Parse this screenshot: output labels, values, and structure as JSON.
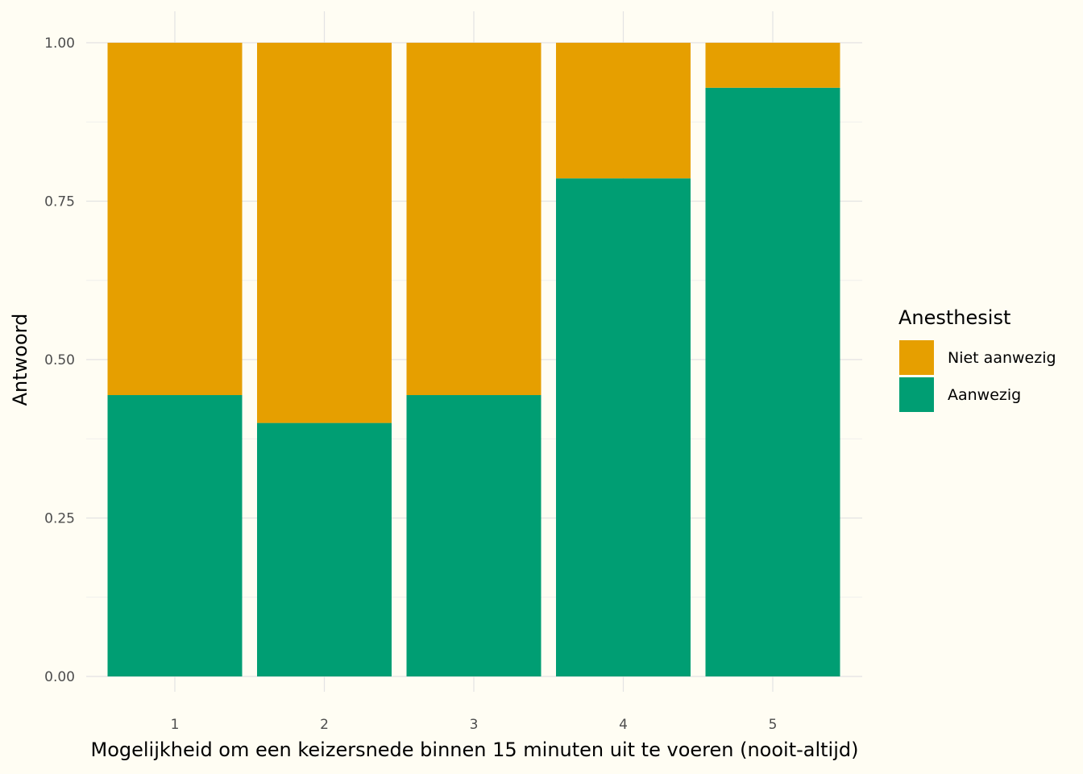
{
  "chart_data": {
    "type": "bar",
    "stacked": true,
    "categories": [
      "1",
      "2",
      "3",
      "4",
      "5"
    ],
    "series": [
      {
        "name": "Aanwezig",
        "color": "#009e73",
        "values": [
          0.444,
          0.4,
          0.444,
          0.786,
          0.929
        ]
      },
      {
        "name": "Niet aanwezig",
        "color": "#e69f00",
        "values": [
          0.556,
          0.6,
          0.556,
          0.214,
          0.071
        ]
      }
    ],
    "xlabel": "Mogelijkheid om een keizersnede binnen 15 minuten uit te voeren (nooit-altijd)",
    "ylabel": "Antwoord",
    "ylim": [
      0,
      1
    ],
    "yticks": [
      "0.00",
      "0.25",
      "0.50",
      "0.75",
      "1.00"
    ],
    "yticks_values": [
      0,
      0.25,
      0.5,
      0.75,
      1.0
    ],
    "grid": true,
    "legend": {
      "title": "Anesthesist",
      "position": "right",
      "items": [
        {
          "label": "Niet aanwezig",
          "color": "#e69f00"
        },
        {
          "label": "Aanwezig",
          "color": "#009e73"
        }
      ]
    }
  }
}
